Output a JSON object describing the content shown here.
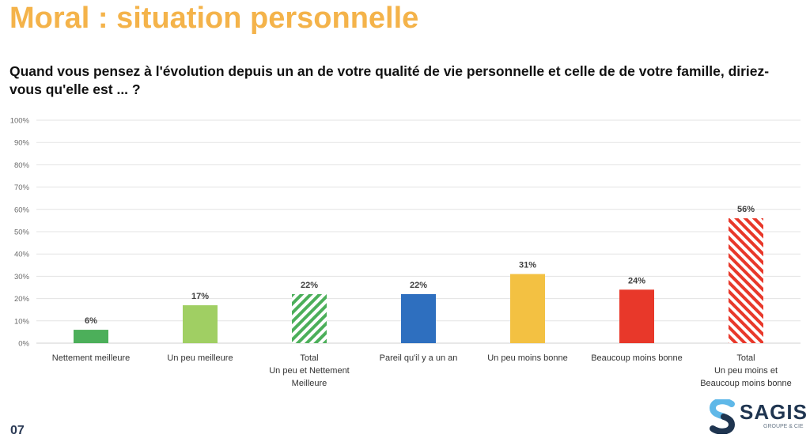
{
  "header": {
    "title": "Moral : situation personnelle",
    "question": "Quand vous pensez à l'évolution depuis un an de votre qualité de vie personnelle et celle de de votre famille, diriez-vous qu'elle est ... ?"
  },
  "footer": {
    "page_number": "07",
    "logo": {
      "name": "SAGIS",
      "subtitle": "GROUPE & CIE",
      "colors": {
        "light": "#5FB8E8",
        "dark": "#1F3550"
      }
    }
  },
  "chart_data": {
    "type": "bar",
    "title": "",
    "xlabel": "",
    "ylabel": "",
    "ylim": [
      0,
      100
    ],
    "yticks": [
      0,
      10,
      20,
      30,
      40,
      50,
      60,
      70,
      80,
      90,
      100
    ],
    "ytick_format": "%",
    "grid": true,
    "legend": "none",
    "categories": [
      [
        "Nettement meilleure"
      ],
      [
        "Un peu meilleure"
      ],
      [
        "Total",
        "Un peu et Nettement",
        "Meilleure"
      ],
      [
        "Pareil qu'il y a un an"
      ],
      [
        "Un peu moins bonne"
      ],
      [
        "Beaucoup moins bonne"
      ],
      [
        "Total",
        "Un peu moins et",
        "Beaucoup moins bonne"
      ]
    ],
    "values": [
      6,
      17,
      22,
      22,
      31,
      24,
      56
    ],
    "data_labels": [
      "6%",
      "17%",
      "22%",
      "22%",
      "31%",
      "24%",
      "56%"
    ],
    "colors": [
      "#4CAF5A",
      "#A0CF63",
      "#4CAF5A",
      "#2E6FBF",
      "#F3C142",
      "#E8382A",
      "#E8382A"
    ],
    "hatched": [
      false,
      false,
      true,
      false,
      false,
      false,
      true
    ]
  }
}
